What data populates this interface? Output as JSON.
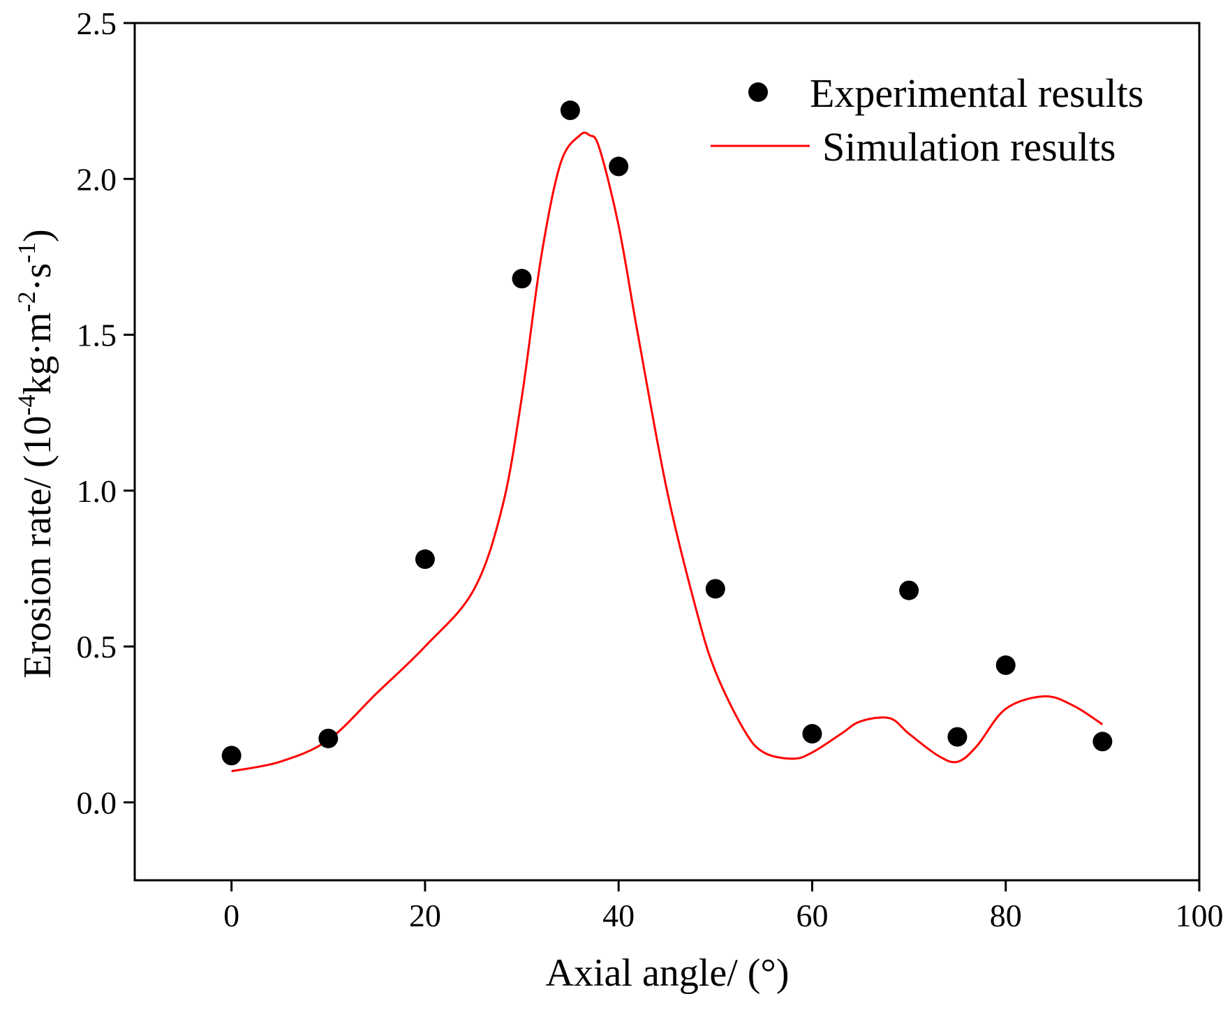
{
  "chart_data": {
    "type": "scatter",
    "title": "",
    "xlabel": "Axial angle/ (°)",
    "ylabel": {
      "prefix": "Erosion rate/ (10",
      "exp1": "-4",
      "mid1": "kg·m",
      "exp2": "-2",
      "mid2": "·s",
      "exp3": "-1",
      "suffix": ")"
    },
    "xlim": [
      -10,
      100
    ],
    "ylim": [
      -0.25,
      2.5
    ],
    "xticks": [
      0,
      20,
      40,
      60,
      80,
      100
    ],
    "xtick_labels": [
      "0",
      "20",
      "40",
      "60",
      "80",
      "100"
    ],
    "yticks": [
      0.0,
      0.5,
      1.0,
      1.5,
      2.0,
      2.5
    ],
    "ytick_labels": [
      "0.0",
      "0.5",
      "1.0",
      "1.5",
      "2.0",
      "2.5"
    ],
    "grid": false,
    "legend_position": "top-right",
    "series": [
      {
        "name": "Experimental results",
        "kind": "scatter",
        "color": "#000000",
        "x": [
          0,
          10,
          20,
          30,
          35,
          40,
          50,
          60,
          70,
          75,
          80,
          90
        ],
        "y": [
          0.15,
          0.205,
          0.78,
          1.68,
          2.22,
          2.04,
          0.685,
          0.22,
          0.68,
          0.21,
          0.44,
          0.195
        ]
      },
      {
        "name": "Simulation results",
        "kind": "line",
        "color": "#ff0000",
        "x": [
          0,
          5,
          10,
          15,
          20,
          25,
          28,
          30,
          32,
          34,
          36,
          37,
          38,
          40,
          42,
          45,
          48,
          50,
          53,
          55,
          58,
          60,
          63,
          65,
          68,
          70,
          73,
          75,
          77,
          80,
          84,
          87,
          90
        ],
        "y": [
          0.1,
          0.13,
          0.2,
          0.35,
          0.5,
          0.68,
          0.95,
          1.3,
          1.75,
          2.05,
          2.14,
          2.14,
          2.1,
          1.85,
          1.5,
          1.0,
          0.62,
          0.42,
          0.23,
          0.16,
          0.14,
          0.16,
          0.22,
          0.26,
          0.27,
          0.22,
          0.15,
          0.13,
          0.18,
          0.3,
          0.34,
          0.31,
          0.25
        ]
      }
    ]
  }
}
